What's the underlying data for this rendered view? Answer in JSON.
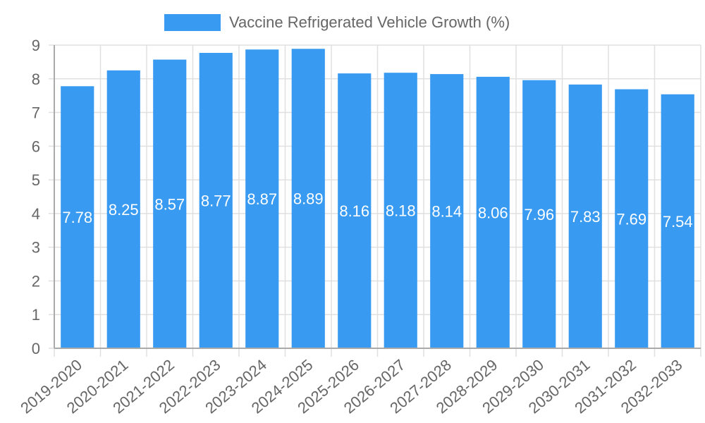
{
  "chart_data": {
    "type": "bar",
    "title": "",
    "legend": [
      "Vaccine Refrigerated Vehicle Growth (%)"
    ],
    "legend_position": "top",
    "categories": [
      "2019-2020",
      "2020-2021",
      "2021-2022",
      "2022-2023",
      "2023-2024",
      "2024-2025",
      "2025-2026",
      "2026-2027",
      "2027-2028",
      "2028-2029",
      "2029-2030",
      "2030-2031",
      "2031-2032",
      "2032-2033"
    ],
    "series": [
      {
        "name": "Vaccine Refrigerated Vehicle Growth (%)",
        "values": [
          7.78,
          8.25,
          8.57,
          8.77,
          8.87,
          8.89,
          8.16,
          8.18,
          8.14,
          8.06,
          7.96,
          7.83,
          7.69,
          7.54
        ],
        "color": "#389af0"
      }
    ],
    "xlabel": "",
    "ylabel": "",
    "ylim": [
      0,
      9
    ],
    "yticks": [
      0,
      1,
      2,
      3,
      4,
      5,
      6,
      7,
      8,
      9
    ],
    "grid": true,
    "data_labels": true
  },
  "legend": {
    "label": "Vaccine Refrigerated Vehicle Growth (%)",
    "color": "#389af0"
  }
}
